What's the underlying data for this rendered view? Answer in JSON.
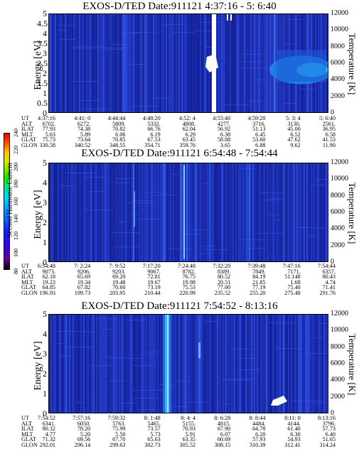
{
  "colorbar": {
    "label": "Second Harmonic Current",
    "ticks": [
      "80",
      "100",
      "120",
      "140",
      "160",
      "180",
      "200",
      "220",
      "240"
    ]
  },
  "chart_data": [
    {
      "type": "heatmap",
      "title": "EXOS-D/TED   Date:911121   4:37:16 - 5: 6:40",
      "ylabel": "Energy [eV]",
      "y2label": "Temperature [K]",
      "ylim": [
        0,
        5
      ],
      "y2lim": [
        0,
        12000
      ],
      "yticks": [
        "0",
        "0.5",
        "1",
        "1.5",
        "2",
        "2.5",
        "3",
        "3.5",
        "4",
        "4.5",
        "5"
      ],
      "y2ticks": [
        "0",
        "2000",
        "4000",
        "6000",
        "8000",
        "10000",
        "12000"
      ],
      "orbit_rows": [
        "UT",
        "ALT",
        "ILAT",
        "MLT",
        "GLAT",
        "GLON"
      ],
      "columns": [
        [
          "4:37:16",
          "6702.",
          "77.93",
          "5.63",
          "75.73",
          "330.58"
        ],
        [
          "4:41: 0",
          "6272.",
          "74.38",
          "5.89",
          "73.64",
          "340.52"
        ],
        [
          "4:44:44",
          "5809.",
          "70.82",
          "6.06",
          "70.85",
          "348.55"
        ],
        [
          "4:48:20",
          "5332.",
          "66.76",
          "6.19",
          "67.53",
          "354.71"
        ],
        [
          "4:52: 4",
          "4808.",
          "62.04",
          "6.29",
          "63.45",
          "359.76"
        ],
        [
          "4:55:40",
          "4277.",
          "56.92",
          "6.38",
          "58.88",
          "3.65"
        ],
        [
          "4:59:20",
          "3716.",
          "51.13",
          "6.45",
          "53.60",
          "6.88"
        ],
        [
          "5: 3: 4",
          "3130.",
          "45.00",
          "6.52",
          "47.62",
          "9.62"
        ],
        [
          "5: 6:40",
          "2561.",
          "36.95",
          "6.58",
          "41.53",
          "11.90"
        ]
      ],
      "features": [
        {
          "kind": "data gap",
          "ut": "4:55:40"
        },
        {
          "kind": "enhancement",
          "ut_range": [
            "5: 1: 0",
            "5: 6:40"
          ],
          "energy_range": [
            1.5,
            3.0
          ]
        }
      ]
    },
    {
      "type": "heatmap",
      "title": "EXOS-D/TED   Date:911121   6:54:48 - 7:54:44",
      "ylabel": "Energy [eV]",
      "y2label": "Temperature [K]",
      "ylim": [
        0,
        5
      ],
      "y2lim": [
        0,
        12000
      ],
      "yticks": [
        "0",
        "1",
        "2",
        "3",
        "4",
        "5"
      ],
      "y2ticks": [
        "0",
        "2000",
        "4000",
        "6000",
        "8000",
        "10000",
        "12000"
      ],
      "orbit_rows": [
        "UT",
        "ALT",
        "ILAT",
        "MLT",
        "GLAT",
        "GLON"
      ],
      "columns": [
        [
          "6:54:48",
          "9073.",
          "62.18",
          "19.23",
          "64.85",
          "196.93"
        ],
        [
          "7: 2:24",
          "9206.",
          "65.69",
          "19.34",
          "67.82",
          "199.73"
        ],
        [
          "7: 9:52",
          "9203.",
          "69.20",
          "19.48",
          "70.60",
          "203.95"
        ],
        [
          "7:17:20",
          "9067.",
          "72.81",
          "19.67",
          "73.19",
          "210.44"
        ],
        [
          "7:24:48",
          "8782.",
          "76.75",
          "19.98",
          "75.53",
          "220.99"
        ],
        [
          "7:32:20",
          "8389.",
          "80.52",
          "20.51",
          "77.00",
          "235.52"
        ],
        [
          "7:39:48",
          "7849.",
          "84.19",
          "21.85",
          "77.19",
          "255.20"
        ],
        [
          "7:47:16",
          "7171.",
          "51.148",
          "1.68",
          "75.40",
          "275.48"
        ],
        [
          "7:54:44",
          "6357.",
          "80.43",
          "4.74",
          "71.41",
          "291.76"
        ]
      ]
    },
    {
      "type": "heatmap",
      "title": "EXOS-D/TED   Date:911121   7:54:52 - 8:13:16",
      "ylabel": "Energy [eV]",
      "y2label": "Temperature [K]",
      "ylim": [
        0,
        5
      ],
      "y2lim": [
        0,
        12000
      ],
      "yticks": [
        "0",
        "1",
        "2",
        "3",
        "4",
        "5"
      ],
      "y2ticks": [
        "0",
        "2000",
        "4000",
        "6000",
        "8000",
        "10000",
        "12000"
      ],
      "orbit_rows": [
        "UT",
        "ALT",
        "ILAT",
        "MLT",
        "GLAT",
        "GLON"
      ],
      "columns": [
        [
          "7:54:52",
          "6341.",
          "80.32",
          "4.77",
          "71.32",
          "292.01"
        ],
        [
          "7:57:16",
          "6050.",
          "78.20",
          "5.20",
          "69.56",
          "296.14"
        ],
        [
          "7:59:32",
          "5763.",
          "75.99",
          "5.50",
          "67.70",
          "299.63"
        ],
        [
          "8: 1:48",
          "5465.",
          "73.57",
          "5.73",
          "65.63",
          "302.73"
        ],
        [
          "8: 4: 4",
          "5155.",
          "70.93",
          "5.91",
          "63.35",
          "305.52"
        ],
        [
          "8: 6:28",
          "4815.",
          "67.90",
          "6.07",
          "60.69",
          "308.15"
        ],
        [
          "8: 8:44",
          "4484.",
          "64.78",
          "6.20",
          "57.93",
          "310.39"
        ],
        [
          "8:11: 0",
          "4144.",
          "61.40",
          "6.30",
          "54.93",
          "312.41"
        ],
        [
          "8:13:16",
          "3796.",
          "57.73",
          "6.40",
          "51.65",
          "314.24"
        ]
      ],
      "features": [
        {
          "kind": "enhancement",
          "ut": "8: 1:48",
          "energy_range": [
            0,
            5
          ]
        }
      ]
    }
  ]
}
